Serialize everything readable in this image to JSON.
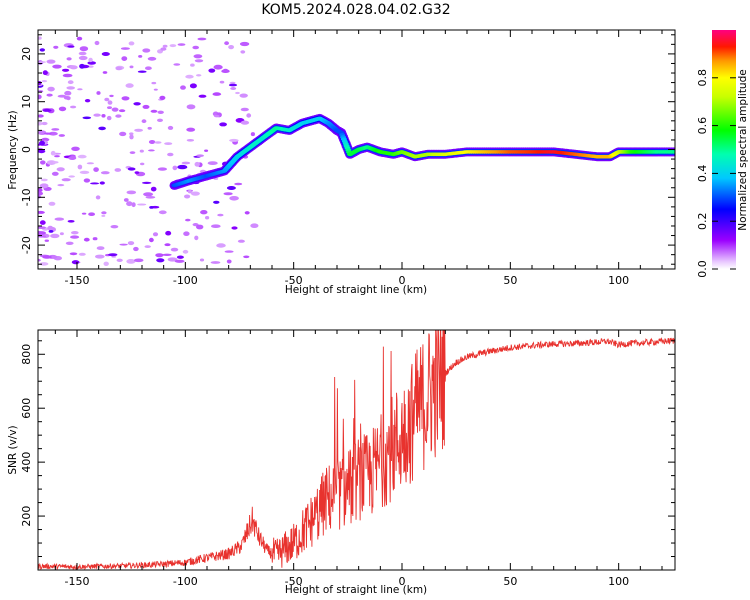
{
  "title": "KOM5.2024.028.04.02.G32",
  "chart_data": [
    {
      "type": "heatmap",
      "xlabel": "Height of straight line (km)",
      "ylabel": "Frequency (Hz)",
      "xlim": [
        -168,
        126
      ],
      "ylim": [
        -25,
        25
      ],
      "xticks": [
        -150,
        -100,
        -50,
        0,
        50,
        100
      ],
      "yticks": [
        -20,
        -10,
        0,
        10,
        20
      ],
      "colorbar": {
        "label": "Normalized spectral amplitude",
        "range": [
          0,
          1
        ],
        "ticks": [
          0.0,
          0.2,
          0.4,
          0.6,
          0.8
        ],
        "colormap": "gist_rainbow_r"
      },
      "ridge": {
        "x": [
          -105,
          -98,
          -90,
          -82,
          -76,
          -70,
          -64,
          -58,
          -52,
          -46,
          -42,
          -38,
          -34,
          -30,
          -28,
          -24,
          -20,
          -16,
          -10,
          -4,
          0,
          6,
          12,
          20,
          30,
          40,
          50,
          60,
          70,
          80,
          90,
          96,
          100,
          106,
          112,
          118,
          126
        ],
        "y": [
          -7.5,
          -6.5,
          -5.5,
          -4.5,
          -1.5,
          0.5,
          2.5,
          4.5,
          4,
          5.5,
          6,
          6.5,
          5.5,
          4,
          3.5,
          -1,
          0,
          0.5,
          -0.5,
          -1,
          -0.5,
          -1.5,
          -1,
          -1,
          -0.5,
          -0.5,
          -0.5,
          -0.5,
          -0.5,
          -1,
          -1.5,
          -1.5,
          -0.5,
          -0.5,
          -0.5,
          -0.5,
          -0.5
        ],
        "amplitude": [
          0.3,
          0.35,
          0.3,
          0.35,
          0.4,
          0.45,
          0.45,
          0.5,
          0.45,
          0.4,
          0.4,
          0.4,
          0.35,
          0.3,
          0.3,
          0.55,
          0.55,
          0.5,
          0.6,
          0.6,
          0.65,
          0.7,
          0.7,
          0.75,
          0.8,
          0.85,
          0.9,
          0.92,
          0.95,
          0.9,
          0.85,
          0.85,
          0.75,
          0.6,
          0.55,
          0.5,
          0.5
        ]
      }
    },
    {
      "type": "line",
      "xlabel": "Height of straight line (km)",
      "ylabel": "SNR (v/v)",
      "xlim": [
        -168,
        126
      ],
      "ylim": [
        0,
        890
      ],
      "xticks": [
        -150,
        -100,
        -50,
        0,
        50,
        100
      ],
      "yticks": [
        200,
        400,
        600,
        800
      ],
      "color": "#e8322e",
      "series": [
        {
          "x": [
            -168,
            -150,
            -125,
            -110,
            -100,
            -90,
            -80,
            -74,
            -69,
            -66,
            -62,
            -58,
            -50,
            -45,
            -40,
            -35,
            -30,
            -25,
            -20,
            -15,
            -10,
            -5,
            0,
            5,
            10,
            15,
            20,
            25,
            30,
            40,
            50,
            60,
            70,
            80,
            90,
            95,
            100,
            105,
            110,
            115,
            120,
            126
          ],
          "y": [
            14,
            12,
            16,
            22,
            28,
            45,
            60,
            90,
            185,
            120,
            70,
            55,
            100,
            150,
            200,
            260,
            280,
            300,
            340,
            350,
            400,
            450,
            500,
            560,
            620,
            680,
            730,
            770,
            790,
            810,
            825,
            832,
            838,
            840,
            845,
            848,
            835,
            840,
            842,
            845,
            848,
            850
          ]
        }
      ]
    }
  ]
}
